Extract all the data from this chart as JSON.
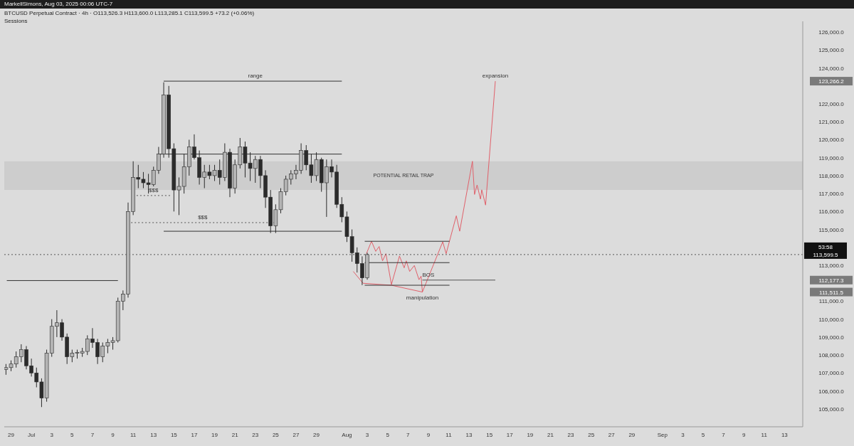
{
  "chart_data": {
    "type": "candlestick",
    "title": "BTCUSD Perpetual Contract · 4h · O113,526.3 H113,600.0 L113,285.1 C113,599.5 +73.2 (+0.06%)",
    "subtitle": "Sessions",
    "color": "#2b2b2b",
    "x": [
      "2025-06-28T12:00",
      "2025-06-29T00:00",
      "2025-06-29T12:00",
      "2025-06-30T00:00",
      "2025-06-30T12:00",
      "2025-07-01T00:00",
      "2025-07-01T12:00",
      "2025-07-02T00:00",
      "2025-07-02T12:00",
      "2025-07-03T00:00",
      "2025-07-03T12:00",
      "2025-07-04T00:00",
      "2025-07-04T12:00",
      "2025-07-05T00:00",
      "2025-07-05T12:00",
      "2025-07-06T00:00",
      "2025-07-06T12:00",
      "2025-07-07T00:00",
      "2025-07-07T12:00",
      "2025-07-08T00:00",
      "2025-07-08T12:00",
      "2025-07-09T00:00",
      "2025-07-09T12:00",
      "2025-07-10T00:00",
      "2025-07-10T12:00",
      "2025-07-11T00:00",
      "2025-07-11T12:00",
      "2025-07-12T00:00",
      "2025-07-12T12:00",
      "2025-07-13T00:00",
      "2025-07-13T12:00",
      "2025-07-14T00:00",
      "2025-07-14T12:00",
      "2025-07-15T00:00",
      "2025-07-15T12:00",
      "2025-07-16T00:00",
      "2025-07-16T12:00",
      "2025-07-17T00:00",
      "2025-07-17T12:00",
      "2025-07-18T00:00",
      "2025-07-18T12:00",
      "2025-07-19T00:00",
      "2025-07-19T12:00",
      "2025-07-20T00:00",
      "2025-07-20T12:00",
      "2025-07-21T00:00",
      "2025-07-21T12:00",
      "2025-07-22T00:00",
      "2025-07-22T12:00",
      "2025-07-23T00:00",
      "2025-07-23T12:00",
      "2025-07-24T00:00",
      "2025-07-24T12:00",
      "2025-07-25T00:00",
      "2025-07-25T12:00",
      "2025-07-26T00:00",
      "2025-07-26T12:00",
      "2025-07-27T00:00",
      "2025-07-27T12:00",
      "2025-07-28T00:00",
      "2025-07-28T12:00",
      "2025-07-29T00:00",
      "2025-07-29T12:00",
      "2025-07-30T00:00",
      "2025-07-30T12:00",
      "2025-07-31T00:00",
      "2025-07-31T12:00",
      "2025-08-01T00:00",
      "2025-08-01T12:00",
      "2025-08-02T00:00",
      "2025-08-02T12:00",
      "2025-08-03T00:00"
    ],
    "ohlc": [
      [
        107200,
        107500,
        106900,
        107300
      ],
      [
        107300,
        107700,
        107100,
        107500
      ],
      [
        107500,
        108200,
        107300,
        107900
      ],
      [
        107900,
        108600,
        107600,
        108300
      ],
      [
        108300,
        108500,
        107200,
        107400
      ],
      [
        107400,
        107800,
        106800,
        107000
      ],
      [
        107000,
        107300,
        106200,
        106500
      ],
      [
        106500,
        106700,
        105100,
        105600
      ],
      [
        105600,
        108300,
        105400,
        108100
      ],
      [
        108100,
        110000,
        107900,
        109600
      ],
      [
        109600,
        110500,
        109000,
        109800
      ],
      [
        109800,
        110000,
        108800,
        109000
      ],
      [
        109000,
        109200,
        107500,
        107900
      ],
      [
        107900,
        108300,
        107600,
        108100
      ],
      [
        108100,
        108300,
        107800,
        108150
      ],
      [
        108100,
        108400,
        107900,
        108200
      ],
      [
        108200,
        109100,
        108000,
        108900
      ],
      [
        108900,
        109500,
        108400,
        108700
      ],
      [
        108700,
        108900,
        107500,
        107900
      ],
      [
        107900,
        108700,
        107600,
        108500
      ],
      [
        108500,
        108900,
        108100,
        108700
      ],
      [
        108700,
        109000,
        108300,
        108800
      ],
      [
        108800,
        111200,
        108700,
        111000
      ],
      [
        111000,
        111600,
        110500,
        111400
      ],
      [
        111400,
        116500,
        111200,
        116000
      ],
      [
        116000,
        118800,
        115800,
        117900
      ],
      [
        117900,
        118600,
        117300,
        117800
      ],
      [
        117800,
        118200,
        117300,
        117600
      ],
      [
        117600,
        118100,
        117000,
        117500
      ],
      [
        117500,
        118500,
        117400,
        118300
      ],
      [
        118300,
        119600,
        118100,
        119200
      ],
      [
        119200,
        123200,
        119000,
        122500
      ],
      [
        122500,
        123000,
        119000,
        119500
      ],
      [
        119500,
        119800,
        116000,
        117200
      ],
      [
        117200,
        117900,
        115800,
        117400
      ],
      [
        117400,
        119200,
        117000,
        118500
      ],
      [
        118500,
        120000,
        118000,
        119600
      ],
      [
        119600,
        120300,
        118900,
        119000
      ],
      [
        119000,
        119400,
        117500,
        117900
      ],
      [
        117900,
        118600,
        117300,
        118200
      ],
      [
        118200,
        118600,
        117800,
        118000
      ],
      [
        118000,
        118600,
        117700,
        118300
      ],
      [
        118300,
        118900,
        117500,
        117900
      ],
      [
        117900,
        119800,
        117700,
        119300
      ],
      [
        119300,
        119500,
        116800,
        117300
      ],
      [
        117300,
        118900,
        117000,
        118600
      ],
      [
        118600,
        120100,
        118400,
        119600
      ],
      [
        119600,
        119900,
        117900,
        118700
      ],
      [
        118700,
        119300,
        117700,
        118400
      ],
      [
        118400,
        119100,
        117600,
        118900
      ],
      [
        118900,
        119100,
        117300,
        118000
      ],
      [
        118000,
        118300,
        116200,
        116800
      ],
      [
        116800,
        117200,
        114800,
        115200
      ],
      [
        115200,
        116400,
        114800,
        116100
      ],
      [
        116100,
        117300,
        115900,
        117100
      ],
      [
        117100,
        118000,
        116900,
        117800
      ],
      [
        117800,
        118300,
        117500,
        118100
      ],
      [
        118100,
        118600,
        117800,
        118300
      ],
      [
        118300,
        119800,
        118100,
        119400
      ],
      [
        119400,
        119700,
        118300,
        118600
      ],
      [
        118600,
        119200,
        117600,
        118000
      ],
      [
        118000,
        119300,
        117700,
        118900
      ],
      [
        118900,
        119000,
        117100,
        117600
      ],
      [
        117600,
        118900,
        115700,
        118500
      ],
      [
        118500,
        118900,
        117900,
        118200
      ],
      [
        118200,
        118600,
        116200,
        116400
      ],
      [
        116400,
        116800,
        115400,
        115700
      ],
      [
        115700,
        116000,
        114300,
        114600
      ],
      [
        114600,
        115000,
        113200,
        113700
      ],
      [
        113700,
        114000,
        112600,
        113100
      ],
      [
        113100,
        113500,
        111900,
        112300
      ],
      [
        112300,
        113700,
        112200,
        113599.5
      ]
    ],
    "series": [
      {
        "type": "line",
        "color": "#e0606a",
        "x": [
          "2025-08-02T22:00",
          "2025-08-03T10:00",
          "2025-08-03T20:00",
          "2025-08-04T04:00",
          "2025-08-04T12:00",
          "2025-08-04T20:00",
          "2025-08-05T09:00",
          "2025-08-06T04:00",
          "2025-08-06T15:00",
          "2025-08-06T20:00",
          "2025-08-07T04:00",
          "2025-08-07T15:00",
          "2025-08-08T02:00",
          "2025-08-08T07:00",
          "2025-08-08T10:00",
          "2025-08-10T10:00",
          "2025-08-10T18:00",
          "2025-08-11T18:00",
          "2025-08-12T02:00",
          "2025-08-13T08:00",
          "2025-08-13T13:00",
          "2025-08-13T19:00",
          "2025-08-14T03:00",
          "2025-08-14T06:00",
          "2025-08-14T15:00",
          "2025-08-15T14:00"
        ],
        "values": [
          113650,
          114340,
          113780,
          114050,
          113250,
          113650,
          111930,
          113520,
          112860,
          113250,
          112660,
          112990,
          112200,
          112400,
          111511.5,
          114310,
          113650,
          115760,
          114900,
          118800,
          116950,
          117480,
          116690,
          117210,
          116360,
          123266.2
        ]
      },
      {
        "type": "line",
        "color": "#e0606a",
        "x": [
          "2025-08-01T15:00",
          "2025-08-02T14:00",
          "2025-08-05T09:00",
          "2025-08-08T10:00"
        ],
        "values": [
          112660,
          112000,
          111890,
          111511.5
        ]
      },
      {
        "type": "line",
        "color": "#333333",
        "x": [
          "2025-07-14T00:00",
          "2025-07-31T12:00"
        ],
        "values": [
          123266.2,
          123266.2
        ]
      },
      {
        "type": "line",
        "color": "#333333",
        "x": [
          "2025-07-13T12:00",
          "2025-07-31T12:00"
        ],
        "values": [
          119200,
          119200
        ]
      },
      {
        "type": "line",
        "color": "#333333",
        "x": [
          "2025-07-14T00:00",
          "2025-07-31T12:00"
        ],
        "values": [
          114900,
          114900
        ]
      },
      {
        "type": "line",
        "color": "#333333",
        "x": [
          "2025-06-28T14:00",
          "2025-07-09T12:00"
        ],
        "values": [
          112150,
          112150
        ]
      },
      {
        "type": "line",
        "color": "#333333",
        "x": [
          "2025-08-02T18:00",
          "2025-08-11T02:00"
        ],
        "values": [
          114340,
          114340
        ]
      },
      {
        "type": "line",
        "color": "#333333",
        "x": [
          "2025-08-02T18:00",
          "2025-08-11T02:00"
        ],
        "values": [
          113150,
          113150
        ]
      },
      {
        "type": "line",
        "color": "#333333",
        "x": [
          "2025-08-02T18:00",
          "2025-08-11T02:00"
        ],
        "values": [
          111890,
          111890
        ]
      },
      {
        "type": "line",
        "color": "#555555",
        "x": [
          "2025-08-08T10:00",
          "2025-08-15T14:00"
        ],
        "values": [
          112177.3,
          112177.3
        ]
      },
      {
        "type": "line",
        "color": "#555555",
        "line_style": "dotted",
        "x": [
          "2025-07-11T08:00",
          "2025-07-14T16:00"
        ],
        "values": [
          116890,
          116890
        ]
      },
      {
        "type": "line",
        "color": "#555555",
        "line_style": "dotted",
        "x": [
          "2025-07-10T19:00",
          "2025-07-24T22:00"
        ],
        "values": [
          115380,
          115380
        ]
      }
    ],
    "xlim": [
      "2025-06-28T08:00",
      "2025-09-14T19:00"
    ],
    "xticks": [
      {
        "value": "2025-06-29",
        "label": "29"
      },
      {
        "value": "2025-07-01",
        "label": "Jul"
      },
      {
        "value": "2025-07-03",
        "label": "3"
      },
      {
        "value": "2025-07-05",
        "label": "5"
      },
      {
        "value": "2025-07-07",
        "label": "7"
      },
      {
        "value": "2025-07-09",
        "label": "9"
      },
      {
        "value": "2025-07-11",
        "label": "11"
      },
      {
        "value": "2025-07-13",
        "label": "13"
      },
      {
        "value": "2025-07-15",
        "label": "15"
      },
      {
        "value": "2025-07-17",
        "label": "17"
      },
      {
        "value": "2025-07-19",
        "label": "19"
      },
      {
        "value": "2025-07-21",
        "label": "21"
      },
      {
        "value": "2025-07-23",
        "label": "23"
      },
      {
        "value": "2025-07-25",
        "label": "25"
      },
      {
        "value": "2025-07-27",
        "label": "27"
      },
      {
        "value": "2025-07-29",
        "label": "29"
      },
      {
        "value": "2025-08-01",
        "label": "Aug"
      },
      {
        "value": "2025-08-03",
        "label": "3"
      },
      {
        "value": "2025-08-05",
        "label": "5"
      },
      {
        "value": "2025-08-07",
        "label": "7"
      },
      {
        "value": "2025-08-09",
        "label": "9"
      },
      {
        "value": "2025-08-11",
        "label": "11"
      },
      {
        "value": "2025-08-13",
        "label": "13"
      },
      {
        "value": "2025-08-15",
        "label": "15"
      },
      {
        "value": "2025-08-17",
        "label": "17"
      },
      {
        "value": "2025-08-19",
        "label": "19"
      },
      {
        "value": "2025-08-21",
        "label": "21"
      },
      {
        "value": "2025-08-23",
        "label": "23"
      },
      {
        "value": "2025-08-25",
        "label": "25"
      },
      {
        "value": "2025-08-27",
        "label": "27"
      },
      {
        "value": "2025-08-29",
        "label": "29"
      },
      {
        "value": "2025-09-01",
        "label": "Sep"
      },
      {
        "value": "2025-09-03",
        "label": "3"
      },
      {
        "value": "2025-09-05",
        "label": "5"
      },
      {
        "value": "2025-09-07",
        "label": "7"
      },
      {
        "value": "2025-09-09",
        "label": "9"
      },
      {
        "value": "2025-09-11",
        "label": "11"
      },
      {
        "value": "2025-09-13",
        "label": "13"
      }
    ],
    "ylim": [
      104000,
      126600
    ],
    "yticks": [
      {
        "value": 105000,
        "label": "105,000.0"
      },
      {
        "value": 106000,
        "label": "106,000.0"
      },
      {
        "value": 107000,
        "label": "107,000.0"
      },
      {
        "value": 108000,
        "label": "108,000.0"
      },
      {
        "value": 109000,
        "label": "109,000.0"
      },
      {
        "value": 110000,
        "label": "110,000.0"
      },
      {
        "value": 111000,
        "label": "111,000.0"
      },
      {
        "value": 111511.5,
        "label": "111,511.5"
      },
      {
        "value": 112177.3,
        "label": "112,177.3"
      },
      {
        "value": 113000,
        "label": "113,000.0"
      },
      {
        "value": 115000,
        "label": "115,000.0"
      },
      {
        "value": 116000,
        "label": "116,000.0"
      },
      {
        "value": 117000,
        "label": "117,000.0"
      },
      {
        "value": 118000,
        "label": "118,000.0"
      },
      {
        "value": 119000,
        "label": "119,000.0"
      },
      {
        "value": 120000,
        "label": "120,000.0"
      },
      {
        "value": 121000,
        "label": "121,000.0"
      },
      {
        "value": 122000,
        "label": "122,000.0"
      },
      {
        "value": 123266.2,
        "label": "123,266.2"
      },
      {
        "value": 124000,
        "label": "124,000.0"
      },
      {
        "value": 125000,
        "label": "125,000.0"
      },
      {
        "value": 126000,
        "label": "126,000.0"
      }
    ],
    "ref_lines": [
      {
        "axis": "y",
        "value": 113599.5,
        "label": "113,599.5",
        "line_style": "dotted",
        "color": "#555555"
      }
    ],
    "bands": [
      {
        "axis": "y",
        "from": 117200,
        "to": 118800,
        "label": "POTENTIAL RETAIL TRAP",
        "color": "#c9c9c9"
      }
    ],
    "annotations": [
      "MarkellSimons, Aug 03, 2025 00:06 UTC-7",
      "53:58",
      {
        "text": "range",
        "x": "2025-07-23T00:00",
        "y": 123266.2
      },
      {
        "text": "expansion",
        "x": "2025-08-15T14:00",
        "y": 123266.2
      },
      {
        "text": "manipulation",
        "x": "2025-08-08T10:00",
        "y": 111511.5
      },
      {
        "text": "$$$",
        "x": "2025-07-13T00:00",
        "y": 116890
      },
      {
        "text": "$$$",
        "x": "2025-07-17T20:00",
        "y": 115380
      },
      {
        "text": "BOS",
        "x": "2025-08-09T00:00",
        "y": 112177.3
      }
    ]
  }
}
